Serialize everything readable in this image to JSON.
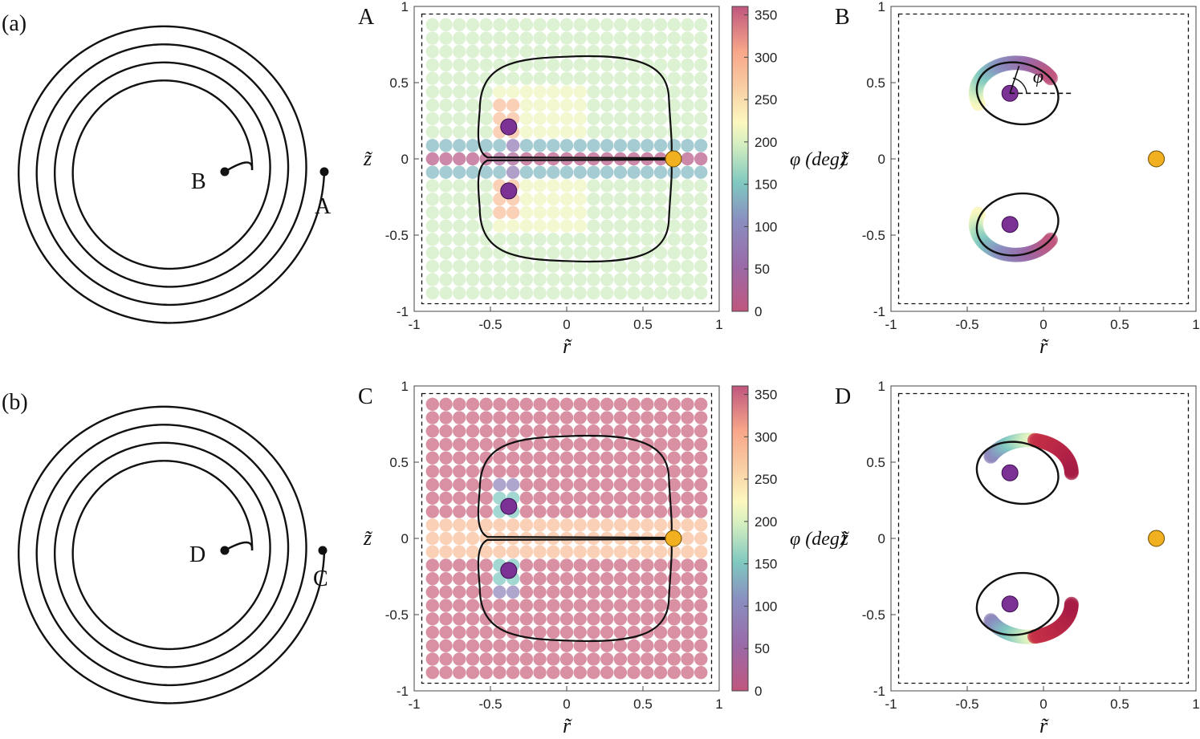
{
  "figure": {
    "label_a": "(a)",
    "label_b": "(b)",
    "spiral_a_labels": [
      "A",
      "B"
    ],
    "spiral_b_labels": [
      "C",
      "D"
    ]
  },
  "colors": {
    "line": "#111111",
    "vortex_purple": "#7b3294",
    "stagnation_orange": "#f0b020",
    "colormap_stops": [
      "#c0567e",
      "#8f73b8",
      "#7fc8c0",
      "#fcf8bf",
      "#f8a88a",
      "#c0567e"
    ]
  },
  "colorbar": {
    "title": "φ (deg)",
    "ticks": [
      0,
      50,
      100,
      150,
      200,
      250,
      300,
      350
    ],
    "range": [
      0,
      360
    ]
  },
  "chart_data": [
    {
      "panel": "A",
      "type": "scatter",
      "title": "A",
      "xlabel": "r̃",
      "ylabel": "z̃",
      "xlim": [
        -1,
        1
      ],
      "ylim": [
        -1,
        1
      ],
      "xticks": [
        "-1",
        "-0.5",
        "0",
        "0.5",
        "1"
      ],
      "yticks": [
        "-1",
        "-0.5",
        "0",
        "0.5",
        "1"
      ],
      "grid_points": "21x21 lattice from -0.88 to 0.88, colored by φ",
      "phi_background": 190,
      "phi_axis_rows": 30,
      "vortices": [
        [
          -0.38,
          0.21
        ],
        [
          -0.38,
          -0.21
        ]
      ],
      "stagnation_point": [
        0.7,
        0
      ]
    },
    {
      "panel": "B",
      "type": "scatter",
      "title": "B",
      "xlabel": "r̃",
      "ylabel": "z̃",
      "xlim": [
        -1,
        1
      ],
      "ylim": [
        -1,
        1
      ],
      "xticks": [
        "-1",
        "-0.5",
        "0",
        "0.5",
        "1"
      ],
      "yticks": [
        "-1",
        "-0.5",
        "0",
        "0.5",
        "1"
      ],
      "vortices": [
        [
          -0.22,
          0.43
        ],
        [
          -0.22,
          -0.43
        ]
      ],
      "stagnation_point": [
        0.74,
        0
      ],
      "angle_label": "φ"
    },
    {
      "panel": "C",
      "type": "scatter",
      "title": "C",
      "xlabel": "r̃",
      "ylabel": "z̃",
      "xlim": [
        -1,
        1
      ],
      "ylim": [
        -1,
        1
      ],
      "xticks": [
        "-1",
        "-0.5",
        "0",
        "0.5",
        "1"
      ],
      "yticks": [
        "-1",
        "-0.5",
        "0",
        "0.5",
        "1"
      ],
      "grid_points": "21x21 lattice from -0.88 to 0.88, colored by φ",
      "phi_background": 355,
      "phi_axis_rows": 270,
      "vortices": [
        [
          -0.38,
          0.21
        ],
        [
          -0.38,
          -0.21
        ]
      ],
      "stagnation_point": [
        0.7,
        0
      ]
    },
    {
      "panel": "D",
      "type": "scatter",
      "title": "D",
      "xlabel": "r̃",
      "ylabel": "z̃",
      "xlim": [
        -1,
        1
      ],
      "ylim": [
        -1,
        1
      ],
      "xticks": [
        "-1",
        "-0.5",
        "0",
        "0.5",
        "1"
      ],
      "yticks": [
        "-1",
        "-0.5",
        "0",
        "0.5",
        "1"
      ],
      "vortices": [
        [
          -0.22,
          0.43
        ],
        [
          -0.22,
          -0.43
        ]
      ],
      "stagnation_point": [
        0.74,
        0
      ]
    }
  ]
}
